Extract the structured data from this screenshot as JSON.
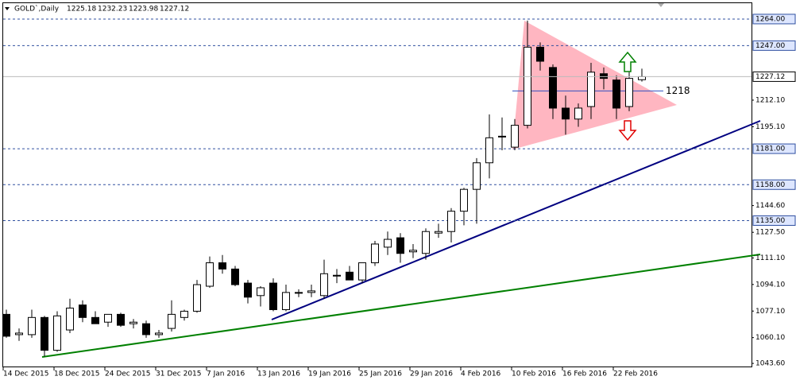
{
  "chart_data": {
    "type": "candlestick",
    "title": "GOLD`,Daily",
    "categories": [
      "14 Dec 2015",
      null,
      null,
      null,
      "18 Dec 2015",
      null,
      null,
      null,
      "24 Dec 2015",
      null,
      null,
      null,
      "31 Dec 2015",
      null,
      null,
      null,
      "7 Jan 2016",
      null,
      null,
      null,
      "13 Jan 2016",
      null,
      null,
      null,
      "19 Jan 2016",
      null,
      null,
      null,
      "25 Jan 2016",
      null,
      null,
      null,
      "29 Jan 2016",
      null,
      null,
      null,
      "4 Feb 2016",
      null,
      null,
      null,
      "10 Feb 2016",
      null,
      null,
      null,
      "16 Feb 2016",
      null,
      null,
      null,
      "22 Feb 2016",
      null,
      null
    ],
    "open": [
      1075,
      1062,
      1062,
      1073,
      1052,
      1065,
      1081,
      1073,
      1070,
      1075,
      1069,
      1069,
      1062,
      1066,
      1073,
      1077,
      1093,
      1108,
      1104,
      1095,
      1087,
      1095,
      1078,
      1089,
      1089,
      1087,
      1100,
      1102,
      1097,
      1108,
      1118,
      1124,
      1115,
      1114,
      1127,
      1128,
      1141,
      1155,
      1172,
      1189,
      1182,
      1196,
      1246,
      1233,
      1207,
      1200,
      1208,
      1229,
      1225,
      1208,
      1225.18
    ],
    "high": [
      1078,
      1066,
      1078,
      1074,
      1077,
      1085,
      1084,
      1077,
      1075,
      1076,
      1072,
      1071,
      1065,
      1084,
      1078,
      1097,
      1112,
      1113,
      1106,
      1097,
      1093,
      1098,
      1094,
      1091,
      1094,
      1110,
      1104,
      1106,
      1107,
      1122,
      1128,
      1127,
      1120,
      1130,
      1133,
      1143,
      1156,
      1175,
      1203,
      1201,
      1200,
      1263,
      1249,
      1235,
      1215,
      1210,
      1236,
      1233,
      1228,
      1230,
      1232.23
    ],
    "low": [
      1060,
      1058,
      1060,
      1048,
      1051,
      1063,
      1070,
      1069,
      1067,
      1067,
      1066,
      1060,
      1060,
      1064,
      1071,
      1076,
      1092,
      1101,
      1093,
      1082,
      1080,
      1077,
      1077,
      1086,
      1086,
      1085,
      1095,
      1097,
      1095,
      1106,
      1113,
      1108,
      1111,
      1110,
      1124,
      1121,
      1132,
      1133,
      1162,
      1180,
      1180,
      1194,
      1231,
      1200,
      1190,
      1195,
      1200,
      1219,
      1200,
      1205,
      1223.98
    ],
    "close": [
      1061,
      1063,
      1073,
      1052,
      1074,
      1079,
      1073,
      1069,
      1075,
      1068,
      1070,
      1062,
      1063,
      1075,
      1077,
      1094,
      1108,
      1104,
      1094,
      1086,
      1092,
      1078,
      1089,
      1089,
      1090,
      1101,
      1100,
      1097,
      1108,
      1120,
      1123,
      1114,
      1116,
      1128,
      1128,
      1141,
      1155,
      1172,
      1188,
      1189,
      1196,
      1246,
      1237,
      1207,
      1200,
      1207,
      1230,
      1226,
      1207,
      1226,
      1227.12
    ],
    "ylim": [
      1041.1,
      1271.1
    ],
    "yticks": [
      {
        "value": 1043.6,
        "label": "1043.60"
      },
      {
        "value": 1060.1,
        "label": "1060.10"
      },
      {
        "value": 1077.1,
        "label": "1077.10"
      },
      {
        "value": 1094.1,
        "label": "1094.10"
      },
      {
        "value": 1111.1,
        "label": "1111.10"
      },
      {
        "value": 1127.5,
        "label": "1127.50"
      },
      {
        "value": 1144.6,
        "label": "1144.60"
      },
      {
        "value": 1195.1,
        "label": "1195.10"
      },
      {
        "value": 1212.1,
        "label": "1212.10"
      }
    ],
    "levels": [
      {
        "value": 1264,
        "label": "1264.00"
      },
      {
        "value": 1247,
        "label": "1247.00"
      },
      {
        "value": 1181,
        "label": "1181.00"
      },
      {
        "value": 1158,
        "label": "1158.00"
      },
      {
        "value": 1135,
        "label": "1135.00"
      }
    ],
    "annotations": [
      1218
    ],
    "up_color": "#ffffff",
    "down_color": "#000000",
    "level_color": "#3050a0"
  }
}
